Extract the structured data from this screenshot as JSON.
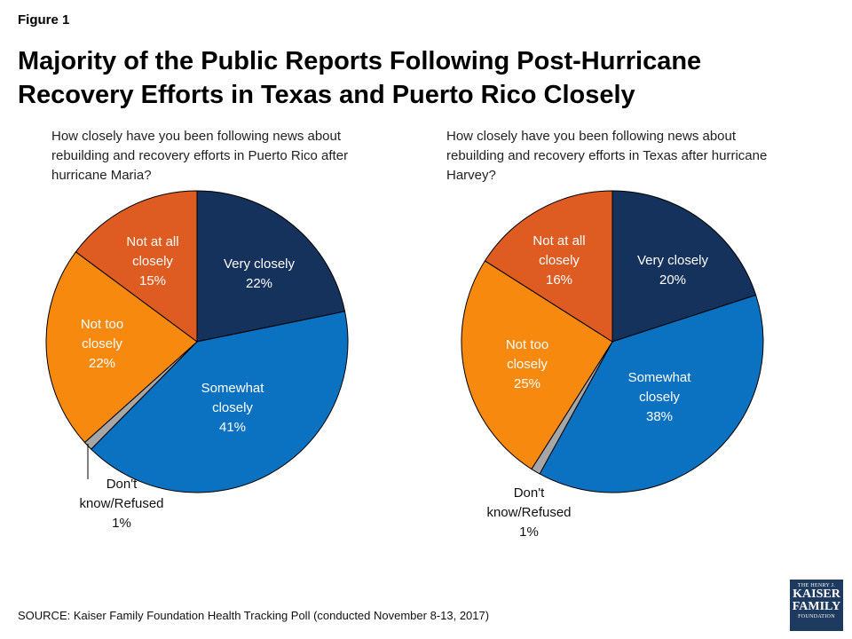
{
  "figure_label": "Figure 1",
  "title": "Majority of the Public Reports Following Post-Hurricane Recovery Efforts in Texas and Puerto Rico Closely",
  "source": "SOURCE: Kaiser Family Foundation Health Tracking Poll (conducted November 8-13, 2017)",
  "logo": {
    "line1": "THE HENRY J.",
    "line2": "KAISER",
    "line3": "FAMILY",
    "line4": "FOUNDATION"
  },
  "colors": {
    "very_closely": "#14325c",
    "somewhat_closely": "#0b72c2",
    "dont_know": "#a6a6a6",
    "not_too_closely": "#f7890f",
    "not_at_all_closely": "#de5b21"
  },
  "chart_data": [
    {
      "type": "pie",
      "title": "How closely have you been following news about rebuilding and recovery efforts in Puerto Rico after hurricane Maria?",
      "slices": [
        {
          "key": "very_closely",
          "label": "Very closely",
          "value": 22,
          "display": "22%"
        },
        {
          "key": "somewhat_closely",
          "label": "Somewhat closely",
          "value": 41,
          "display": "41%"
        },
        {
          "key": "dont_know",
          "label": "Don't know/Refused",
          "value": 1,
          "display": "1%"
        },
        {
          "key": "not_too_closely",
          "label": "Not too closely",
          "value": 22,
          "display": "22%"
        },
        {
          "key": "not_at_all_closely",
          "label": "Not at all closely",
          "value": 15,
          "display": "15%"
        }
      ]
    },
    {
      "type": "pie",
      "title": "How closely have you been following news about rebuilding and recovery efforts in Texas after hurricane Harvey?",
      "slices": [
        {
          "key": "very_closely",
          "label": "Very closely",
          "value": 20,
          "display": "20%"
        },
        {
          "key": "somewhat_closely",
          "label": "Somewhat closely",
          "value": 38,
          "display": "38%"
        },
        {
          "key": "dont_know",
          "label": "Don't know/Refused",
          "value": 1,
          "display": "1%"
        },
        {
          "key": "not_too_closely",
          "label": "Not too closely",
          "value": 25,
          "display": "25%"
        },
        {
          "key": "not_at_all_closely",
          "label": "Not at all closely",
          "value": 16,
          "display": "16%"
        }
      ]
    }
  ]
}
